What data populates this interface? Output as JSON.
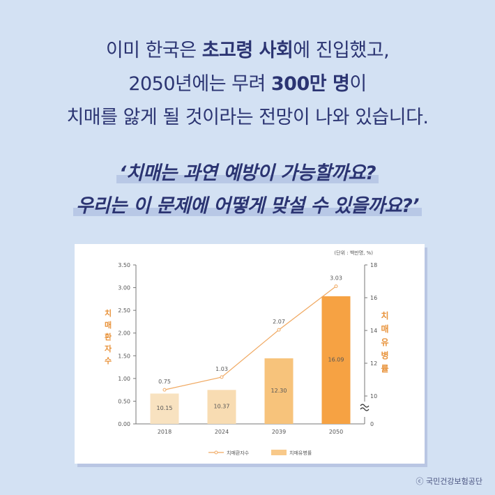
{
  "headline": {
    "line1_pre": "이미 한국은 ",
    "line1_bold": "초고령 사회",
    "line1_post": "에 진입했고,",
    "line2_pre": "2050년에는 무려 ",
    "line2_bold": "300만 명",
    "line2_post": "이",
    "line3": "치매를 앓게 될 것이라는 전망이 나와 있습니다."
  },
  "question": {
    "line1": "‘치매는 과연 예방이 가능할까요?",
    "line2": "우리는 이 문제에 어떻게 맞설 수 있을까요?’"
  },
  "credit": "ⓒ 국민건강보험공단",
  "chart_data": {
    "type": "bar",
    "unit_note": "(단위 : 백만명, %)",
    "categories": [
      "2018",
      "2024",
      "2039",
      "2050"
    ],
    "series": [
      {
        "name": "치매환자수",
        "type": "line",
        "axis": "left",
        "values": [
          0.75,
          1.03,
          2.07,
          3.03
        ],
        "color": "#f0a860"
      },
      {
        "name": "치매유병률",
        "type": "bar",
        "axis": "right",
        "values": [
          10.15,
          10.37,
          12.3,
          16.09
        ],
        "colors": [
          "#f8e2c0",
          "#f8dcb2",
          "#f7c37b",
          "#f6a243"
        ]
      }
    ],
    "ylabel_left": "치매환자수",
    "ylabel_right": "치매유병률",
    "yleft_ticks": [
      "0.00",
      "0.50",
      "1.00",
      "1.50",
      "2.00",
      "2.50",
      "3.00",
      "3.50"
    ],
    "yleft_lim": [
      0,
      3.5
    ],
    "yright_ticks": [
      "0",
      "10",
      "12",
      "14",
      "16",
      "18"
    ],
    "yright_lim": [
      8,
      18
    ],
    "yright_break": true,
    "legend_position": "bottom",
    "grid": false
  }
}
